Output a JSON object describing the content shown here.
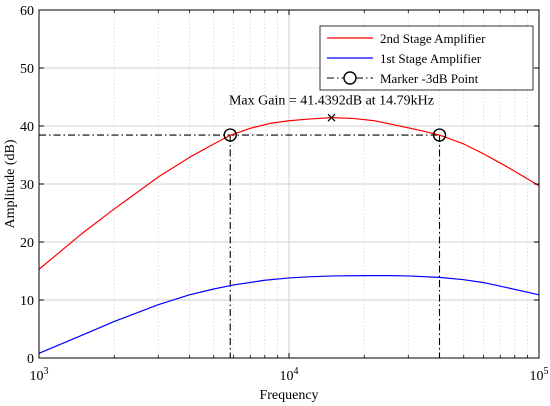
{
  "chart_data": {
    "type": "line",
    "title": "",
    "xlabel": "Frequency",
    "ylabel": "Amplitude (dB)",
    "xscale": "log",
    "xlim": [
      1000,
      100000
    ],
    "ylim": [
      0,
      60
    ],
    "grid": true,
    "legend_position": "top-right",
    "x_ticks": [
      {
        "value": 1000,
        "base": "10",
        "exp": "3"
      },
      {
        "value": 10000,
        "base": "10",
        "exp": "4"
      },
      {
        "value": 100000,
        "base": "10",
        "exp": "5"
      }
    ],
    "y_ticks": [
      "0",
      "10",
      "20",
      "30",
      "40",
      "50",
      "60"
    ],
    "series": [
      {
        "name": "2nd Stage Amplifier",
        "color": "#ff0000",
        "style": "solid",
        "x": [
          1000,
          1500,
          2000,
          3000,
          4000,
          5000,
          5820,
          7000,
          8500,
          10000,
          12000,
          14790,
          18000,
          22000,
          27000,
          33000,
          40000,
          50000,
          60000,
          75000,
          100000
        ],
        "y": [
          15.3,
          21.6,
          25.7,
          31.2,
          34.6,
          36.9,
          38.4,
          39.6,
          40.5,
          40.9,
          41.2,
          41.44,
          41.3,
          40.9,
          40.1,
          39.3,
          38.44,
          36.9,
          35.2,
          32.9,
          29.7
        ]
      },
      {
        "name": "1st Stage Amplifier",
        "color": "#0000ff",
        "style": "solid",
        "x": [
          1000,
          1500,
          2000,
          3000,
          4000,
          5000,
          6000,
          8000,
          10000,
          12000,
          15000,
          20000,
          25000,
          30000,
          40000,
          50000,
          60000,
          75000,
          100000
        ],
        "y": [
          0.8,
          4.0,
          6.3,
          9.2,
          10.9,
          11.9,
          12.6,
          13.4,
          13.8,
          14.0,
          14.15,
          14.2,
          14.2,
          14.15,
          13.9,
          13.5,
          13.0,
          12.1,
          10.9
        ]
      }
    ],
    "markers": {
      "name": "Marker -3dB Point",
      "color": "#000000",
      "style": "dash-dot",
      "level": 38.44,
      "points": [
        {
          "x": 5820,
          "y": 38.44
        },
        {
          "x": 40000,
          "y": 38.44
        }
      ]
    },
    "max_point": {
      "x": 14790,
      "y": 41.44
    },
    "annotation": "Max Gain = 41.4392dB at 14.79kHz"
  }
}
